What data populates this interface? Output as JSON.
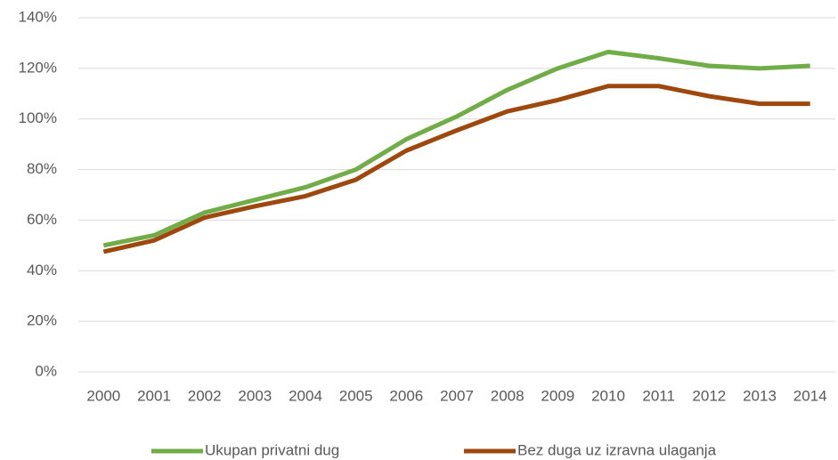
{
  "chart_data": {
    "type": "line",
    "categories": [
      "2000",
      "2001",
      "2002",
      "2003",
      "2004",
      "2005",
      "2006",
      "2007",
      "2008",
      "2009",
      "2010",
      "2011",
      "2012",
      "2013",
      "2014"
    ],
    "series": [
      {
        "name": "Ukupan privatni dug",
        "color": "#70ad47",
        "values": [
          50,
          54,
          63,
          68,
          73,
          80,
          92,
          101,
          111.5,
          120,
          126.5,
          124,
          121,
          120,
          121
        ]
      },
      {
        "name": "Bez duga uz izravna ulaganja",
        "color": "#9e480e",
        "values": [
          47.5,
          52,
          61,
          65.5,
          69.5,
          76,
          87.5,
          95.5,
          103,
          107.5,
          113,
          113,
          109,
          106,
          106
        ]
      }
    ],
    "ylim": [
      0,
      140
    ],
    "yticks": [
      {
        "value": 0,
        "label": "0%"
      },
      {
        "value": 20,
        "label": "20%"
      },
      {
        "value": 40,
        "label": "40%"
      },
      {
        "value": 60,
        "label": "60%"
      },
      {
        "value": 80,
        "label": "80%"
      },
      {
        "value": 100,
        "label": "100%"
      },
      {
        "value": 120,
        "label": "120%"
      },
      {
        "value": 140,
        "label": "140%"
      }
    ],
    "grid": true,
    "legend": "bottom"
  }
}
